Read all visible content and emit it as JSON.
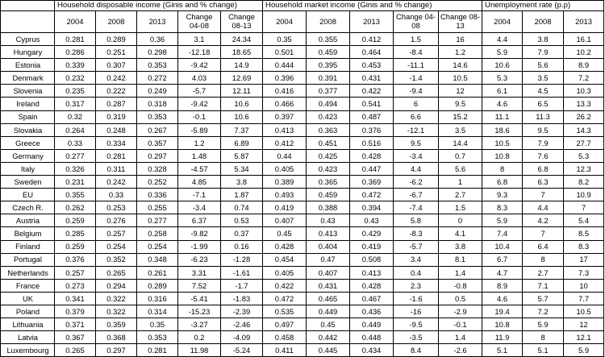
{
  "groups": [
    "Household disposable income (Ginis and % change)",
    "Household market income (Ginis and % change)",
    "Unemployment rate (p.p)"
  ],
  "col_headers": {
    "disposable": [
      "2004",
      "2008",
      "2013",
      "Change 04-08",
      "Change 08-13"
    ],
    "market": [
      "2004",
      "2008",
      "2013",
      "Change 04-08",
      "Change 08-13"
    ],
    "unemployment": [
      "2004",
      "2008",
      "2013"
    ]
  },
  "rows": [
    {
      "country": "Cyprus",
      "values": [
        "0.281",
        "0.289",
        "0.36",
        "3.1",
        "24.34",
        "0.35",
        "0.355",
        "0.412",
        "1.5",
        "16",
        "4.4",
        "3.8",
        "16.1"
      ]
    },
    {
      "country": "Hungary",
      "values": [
        "0.286",
        "0.251",
        "0.298",
        "-12.18",
        "18.65",
        "0.501",
        "0.459",
        "0.464",
        "-8.4",
        "1.2",
        "5.9",
        "7.9",
        "10.2"
      ]
    },
    {
      "country": "Estonia",
      "values": [
        "0.339",
        "0.307",
        "0.353",
        "-9.42",
        "14.9",
        "0.444",
        "0.395",
        "0.453",
        "-11.1",
        "14.6",
        "10.6",
        "5.6",
        "8.9"
      ]
    },
    {
      "country": "Denmark",
      "values": [
        "0.232",
        "0.242",
        "0.272",
        "4.03",
        "12.69",
        "0.396",
        "0.391",
        "0.431",
        "-1.4",
        "10.5",
        "5.3",
        "3.5",
        "7.2"
      ]
    },
    {
      "country": "Slovenia",
      "values": [
        "0.235",
        "0.222",
        "0.249",
        "-5.7",
        "12.11",
        "0.416",
        "0.377",
        "0.422",
        "-9.4",
        "12",
        "6.1",
        "4.5",
        "10.3"
      ]
    },
    {
      "country": "Ireland",
      "values": [
        "0.317",
        "0.287",
        "0.318",
        "-9.42",
        "10.6",
        "0.466",
        "0.494",
        "0.541",
        "6",
        "9.5",
        "4.6",
        "6.5",
        "13.3"
      ]
    },
    {
      "country": "Spain",
      "values": [
        "0.32",
        "0.319",
        "0.353",
        "-0.1",
        "10.6",
        "0.397",
        "0.423",
        "0.487",
        "6.6",
        "15.2",
        "11.1",
        "11.3",
        "26.2"
      ]
    },
    {
      "country": "Slovakia",
      "values": [
        "0.264",
        "0.248",
        "0.267",
        "-5.89",
        "7.37",
        "0.413",
        "0.363",
        "0.376",
        "-12.1",
        "3.5",
        "18.6",
        "9.5",
        "14.3"
      ]
    },
    {
      "country": "Greece",
      "values": [
        "0.33",
        "0.334",
        "0.357",
        "1.2",
        "6.89",
        "0.412",
        "0.451",
        "0.516",
        "9.5",
        "14.4",
        "10.5",
        "7.9",
        "27.7"
      ]
    },
    {
      "country": "Germany",
      "values": [
        "0.277",
        "0.281",
        "0.297",
        "1.48",
        "5.87",
        "0.44",
        "0.425",
        "0.428",
        "-3.4",
        "0.7",
        "10.8",
        "7.6",
        "5.3"
      ]
    },
    {
      "country": "Italy",
      "values": [
        "0.326",
        "0.311",
        "0.328",
        "-4.57",
        "5.34",
        "0.405",
        "0.423",
        "0.447",
        "4.4",
        "5.6",
        "8",
        "6.8",
        "12.3"
      ]
    },
    {
      "country": "Sweden",
      "values": [
        "0.231",
        "0.242",
        "0.252",
        "4.85",
        "3.8",
        "0.389",
        "0.365",
        "0.369",
        "-6.2",
        "1",
        "6.8",
        "6.3",
        "8.2"
      ]
    },
    {
      "country": "EU",
      "values": [
        "0.355",
        "0.33",
        "0.336",
        "-7.1",
        "1.87",
        "0.493",
        "0.459",
        "0.472",
        "-6.7",
        "2.7",
        "9.3",
        "7",
        "10.9"
      ]
    },
    {
      "country": "Czech R.",
      "values": [
        "0.262",
        "0.253",
        "0.255",
        "-3.4",
        "0.74",
        "0.419",
        "0.388",
        "0.394",
        "-7.4",
        "1.5",
        "8.3",
        "4.4",
        "7"
      ]
    },
    {
      "country": "Austria",
      "values": [
        "0.259",
        "0.276",
        "0.277",
        "6.37",
        "0.53",
        "0.407",
        "0.43",
        "0.43",
        "5.8",
        "0",
        "5.9",
        "4.2",
        "5.4"
      ]
    },
    {
      "country": "Belgium",
      "values": [
        "0.285",
        "0.257",
        "0.258",
        "-9.82",
        "0.37",
        "0.45",
        "0.413",
        "0.429",
        "-8.3",
        "4.1",
        "7.4",
        "7",
        "8.5"
      ]
    },
    {
      "country": "Finland",
      "values": [
        "0.259",
        "0.254",
        "0.254",
        "-1.99",
        "0.16",
        "0.428",
        "0.404",
        "0.419",
        "-5.7",
        "3.8",
        "10.4",
        "6.4",
        "8.3"
      ]
    },
    {
      "country": "Portugal",
      "values": [
        "0.376",
        "0.352",
        "0.348",
        "-6.23",
        "-1.28",
        "0.454",
        "0.47",
        "0.508",
        "3.4",
        "8.1",
        "6.7",
        "8",
        "17"
      ]
    },
    {
      "country": "Netherlands",
      "values": [
        "0.257",
        "0.265",
        "0.261",
        "3.31",
        "-1.61",
        "0.405",
        "0.407",
        "0.413",
        "0.4",
        "1.4",
        "4.7",
        "2.7",
        "7.3"
      ]
    },
    {
      "country": "France",
      "values": [
        "0.273",
        "0.294",
        "0.289",
        "7.52",
        "-1.7",
        "0.422",
        "0.431",
        "0.428",
        "2.3",
        "-0.8",
        "8.9",
        "7.1",
        "10"
      ]
    },
    {
      "country": "UK",
      "values": [
        "0.341",
        "0.322",
        "0.316",
        "-5.41",
        "-1.83",
        "0.472",
        "0.465",
        "0.467",
        "-1.6",
        "0.5",
        "4.6",
        "5.7",
        "7.7"
      ]
    },
    {
      "country": "Poland",
      "values": [
        "0.379",
        "0.322",
        "0.314",
        "-15.23",
        "-2.39",
        "0.535",
        "0.449",
        "0.436",
        "-16",
        "-2.9",
        "19.4",
        "7.2",
        "10.5"
      ]
    },
    {
      "country": "Lithuania",
      "values": [
        "0.371",
        "0.359",
        "0.35",
        "-3.27",
        "-2.46",
        "0.497",
        "0.45",
        "0.449",
        "-9.5",
        "-0.1",
        "10.8",
        "5.9",
        "12"
      ]
    },
    {
      "country": "Latvia",
      "values": [
        "0.367",
        "0.368",
        "0.353",
        "0.2",
        "-4.09",
        "0.458",
        "0.442",
        "0.448",
        "-3.5",
        "1.4",
        "11.9",
        "8",
        "12.1"
      ]
    },
    {
      "country": "Luxembourg",
      "values": [
        "0.265",
        "0.297",
        "0.281",
        "11.98",
        "-5.24",
        "0.411",
        "0.445",
        "0.434",
        "8.4",
        "-2.6",
        "5.1",
        "5.1",
        "5.9"
      ]
    }
  ]
}
